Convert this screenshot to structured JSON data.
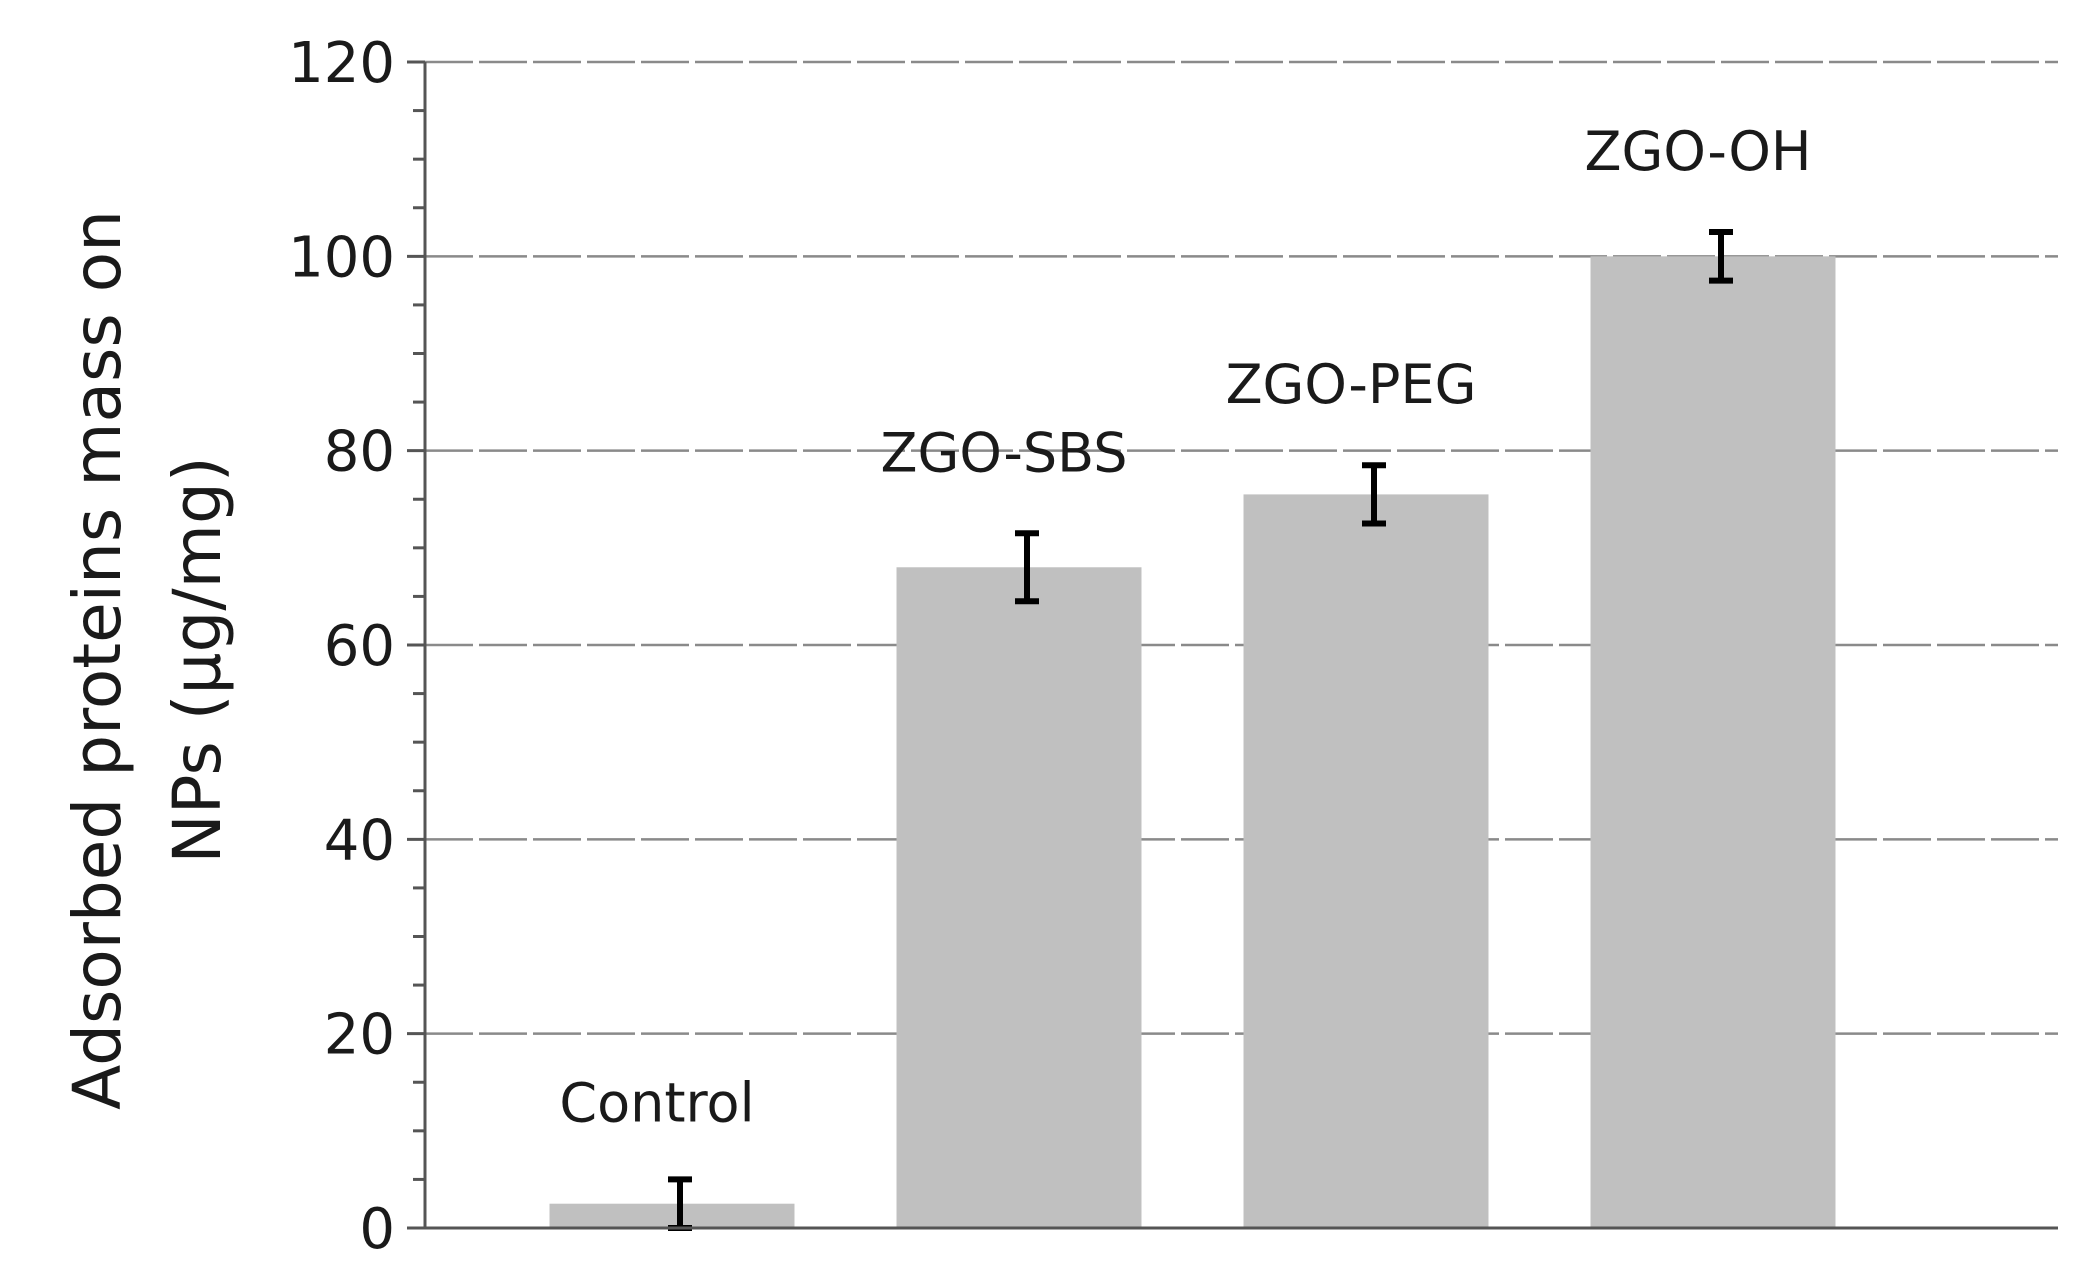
{
  "chart_data": {
    "type": "bar",
    "categories": [
      "Control",
      "ZGO-SBS",
      "ZGO-PEG",
      "ZGO-OH"
    ],
    "values": [
      2.5,
      68,
      75.5,
      100
    ],
    "errors": [
      2.5,
      3.5,
      3,
      2.5
    ],
    "ylabel_line1": "Adsorbed proteins mass on",
    "ylabel_line2": "NPs (µg/mg)",
    "ylim": [
      0,
      120
    ],
    "yticks": [
      "0",
      "20",
      "40",
      "60",
      "80",
      "100",
      "120"
    ],
    "grid": true,
    "bar_color": "#c0c0c0",
    "error_color": "#000000"
  }
}
